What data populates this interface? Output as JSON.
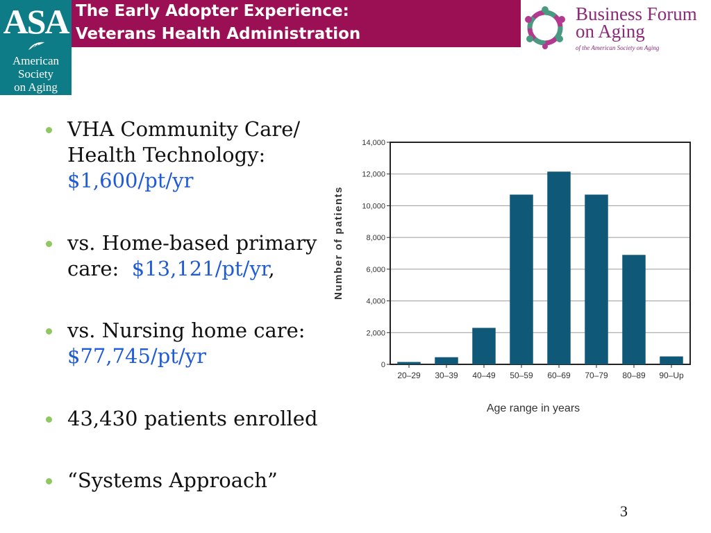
{
  "header": {
    "title_line1": "The Early Adopter Experience:",
    "title_line2": "Veterans Health Administration"
  },
  "asa_logo": {
    "mark": "ASA",
    "name_line1": "American",
    "name_line2": "Society",
    "name_line3": "on Aging"
  },
  "bfa_logo": {
    "title_line1": "Business Forum",
    "title_line2": "on Aging",
    "subtitle": "of the American Society on Aging"
  },
  "bullets": [
    {
      "lines": [
        "VHA Community Care/",
        "Health Technology:"
      ],
      "cost": "$1,600/pt/yr",
      "suffix": ""
    },
    {
      "lines": [
        "vs. Home-based primary",
        "care:"
      ],
      "cost": "$13,121/pt/yr",
      "suffix": ","
    },
    {
      "lines": [
        "vs. Nursing home care:"
      ],
      "cost": "$77,745/pt/yr",
      "suffix": ""
    },
    {
      "lines": [
        "43,430 patients enrolled"
      ],
      "cost": "",
      "suffix": ""
    },
    {
      "lines": [
        "“Systems Approach”"
      ],
      "cost": "",
      "suffix": ""
    }
  ],
  "chart_data": {
    "type": "bar",
    "categories": [
      "20–29",
      "30–39",
      "40–49",
      "50–59",
      "60–69",
      "70–79",
      "80–89",
      "90–Up"
    ],
    "values": [
      150,
      450,
      2300,
      10700,
      12150,
      10700,
      6900,
      500
    ],
    "title": "",
    "xlabel": "Age range in years",
    "ylabel": "Number of patients",
    "ylim": [
      0,
      14000
    ],
    "yticks": [
      0,
      2000,
      4000,
      6000,
      8000,
      10000,
      12000,
      14000
    ],
    "ytick_labels": [
      "0",
      "2,000",
      "4,000",
      "6,000",
      "8,000",
      "10,000",
      "12,000",
      "14,000"
    ],
    "grid": true,
    "bar_color": "#0f5878"
  },
  "page_number": "3",
  "colors": {
    "title_bar": "#9b1054",
    "asa_teal": "#0e7c86",
    "bullet_dot": "#8fc760",
    "cost_text": "#1f5bd6"
  }
}
